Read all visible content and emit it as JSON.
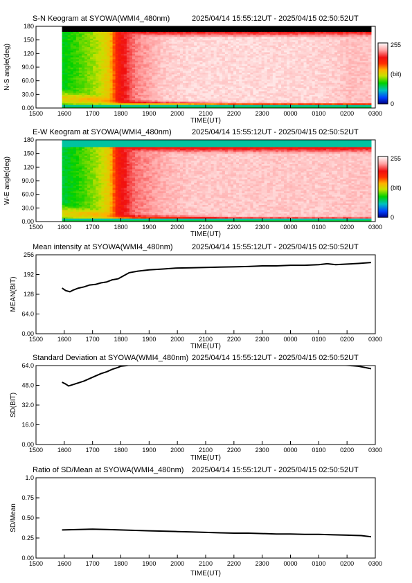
{
  "time_axis": {
    "label": "TIME(UT)",
    "ticks": [
      "1500",
      "1600",
      "1700",
      "1800",
      "1900",
      "2000",
      "2100",
      "2200",
      "2300",
      "0000",
      "0100",
      "0200",
      "0300"
    ]
  },
  "colorbar": {
    "max_label": "255",
    "min_label": "0",
    "unit_label": "(bit)"
  },
  "colormap_stops": [
    {
      "v": 0.0,
      "c": "#000080"
    },
    {
      "v": 0.1,
      "c": "#0040ff"
    },
    {
      "v": 0.22,
      "c": "#00c0c0"
    },
    {
      "v": 0.34,
      "c": "#00d000"
    },
    {
      "v": 0.46,
      "c": "#c8e000"
    },
    {
      "v": 0.56,
      "c": "#ffb000"
    },
    {
      "v": 0.66,
      "c": "#ff3000"
    },
    {
      "v": 0.76,
      "c": "#f01010"
    },
    {
      "v": 0.88,
      "c": "#ffa0a0"
    },
    {
      "v": 1.0,
      "c": "#ffffff"
    }
  ],
  "chart_data": [
    {
      "type": "heatmap",
      "title": "S-N Keogram at SYOWA(WMI4_480nm)",
      "time_range": "2025/04/14 15:55:12UT - 2025/04/15 02:50:52UT",
      "xlabel": "TIME(UT)",
      "ylabel": "N-S angle(deg)",
      "xlim": [
        15.0,
        27.0
      ],
      "ylim": [
        0,
        180
      ],
      "yticks": [
        "0.00",
        "30.0",
        "60.0",
        "90.0",
        "120",
        "150",
        "180"
      ],
      "data_start": 15.92,
      "data_end": 26.85,
      "band_top": 170,
      "band_bottom": 8,
      "edge_profile": [
        [
          15.92,
          0.32
        ],
        [
          16.5,
          0.38
        ],
        [
          17.2,
          0.45
        ],
        [
          17.6,
          0.52
        ],
        [
          17.9,
          0.72
        ],
        [
          18.5,
          0.85
        ],
        [
          19.5,
          0.93
        ],
        [
          20.5,
          0.95
        ],
        [
          22.0,
          0.95
        ],
        [
          24.0,
          0.95
        ],
        [
          25.5,
          0.94
        ],
        [
          26.1,
          0.92
        ],
        [
          26.85,
          0.92
        ]
      ],
      "edge_width_deg": [
        [
          15.92,
          35
        ],
        [
          18.0,
          12
        ],
        [
          22.0,
          6
        ],
        [
          26.85,
          5
        ]
      ]
    },
    {
      "type": "heatmap",
      "title": "E-W Keogram at SYOWA(WMI4_480nm)",
      "time_range": "2025/04/14 15:55:12UT - 2025/04/15 02:50:52UT",
      "xlabel": "TIME(UT)",
      "ylabel": "W-E angle(deg)",
      "xlim": [
        15.0,
        27.0
      ],
      "ylim": [
        0,
        180
      ],
      "yticks": [
        "0.00",
        "30.0",
        "60.0",
        "90.0",
        "120",
        "150",
        "180"
      ],
      "data_start": 15.92,
      "data_end": 26.85,
      "band_top": 164,
      "band_bottom": 6,
      "edge_profile": [
        [
          15.92,
          0.3
        ],
        [
          16.5,
          0.36
        ],
        [
          17.2,
          0.44
        ],
        [
          17.6,
          0.52
        ],
        [
          17.9,
          0.72
        ],
        [
          18.5,
          0.84
        ],
        [
          19.5,
          0.9
        ],
        [
          20.5,
          0.93
        ],
        [
          22.0,
          0.93
        ],
        [
          24.0,
          0.93
        ],
        [
          25.5,
          0.93
        ],
        [
          26.85,
          0.92
        ]
      ],
      "edge_width_deg": [
        [
          15.92,
          35
        ],
        [
          18.0,
          12
        ],
        [
          22.0,
          7
        ],
        [
          26.85,
          6
        ]
      ]
    },
    {
      "type": "line",
      "title": "Mean intensity at SYOWA(WMI4_480nm)",
      "time_range": "2025/04/14 15:55:12UT - 2025/04/15 02:50:52UT",
      "xlabel": "TIME(UT)",
      "ylabel": "MEAN(BIT)",
      "xlim": [
        15.0,
        27.0
      ],
      "ylim": [
        0,
        256
      ],
      "yticks": [
        "0.00",
        "64.0",
        "128",
        "192",
        "256"
      ],
      "x": [
        15.92,
        16.05,
        16.2,
        16.3,
        16.5,
        16.7,
        16.9,
        17.1,
        17.3,
        17.5,
        17.7,
        17.9,
        18.1,
        18.3,
        18.6,
        19.0,
        19.5,
        20.0,
        20.5,
        21.0,
        21.5,
        22.0,
        22.5,
        23.0,
        23.5,
        24.0,
        24.5,
        25.0,
        25.3,
        25.6,
        26.0,
        26.4,
        26.85
      ],
      "values": [
        148,
        140,
        136,
        141,
        148,
        152,
        158,
        160,
        165,
        168,
        175,
        178,
        188,
        198,
        203,
        207,
        210,
        213,
        214,
        215,
        216,
        217,
        218,
        220,
        220,
        222,
        222,
        224,
        227,
        224,
        226,
        228,
        231
      ]
    },
    {
      "type": "line",
      "title": "Standard Deviation at SYOWA(WMI4_480nm)",
      "time_range": "2025/04/14 15:55:12UT - 2025/04/15 02:50:52UT",
      "xlabel": "TIME(UT)",
      "ylabel": "SD(BIT)",
      "xlim": [
        15.0,
        27.0
      ],
      "ylim": [
        0,
        64
      ],
      "yticks": [
        "0.00",
        "16.0",
        "32.0",
        "48.0",
        "64.0"
      ],
      "x": [
        15.92,
        16.05,
        16.15,
        16.3,
        16.5,
        16.7,
        16.9,
        17.1,
        17.3,
        17.5,
        17.7,
        17.9,
        18.0,
        18.2,
        18.4,
        18.6,
        19.0,
        19.5,
        20.0,
        21.0,
        22.0,
        23.0,
        24.0,
        25.0,
        25.5,
        26.0,
        26.4,
        26.85
      ],
      "values": [
        50.5,
        49.0,
        47.5,
        48.5,
        50.0,
        51.5,
        53.5,
        55.5,
        57.5,
        59.0,
        61.0,
        62.5,
        63.5,
        64.0,
        64.8,
        65.2,
        65.8,
        66.0,
        66.2,
        66.4,
        66.3,
        66.1,
        66.0,
        65.5,
        64.8,
        64.2,
        63.5,
        61.5
      ]
    },
    {
      "type": "line",
      "title": "Ratio of SD/Mean at SYOWA(WMI4_480nm)",
      "time_range": "2025/04/14 15:55:12UT - 2025/04/15 02:50:52UT",
      "xlabel": "TIME(UT)",
      "ylabel": "SD/Mean",
      "xlim": [
        15.0,
        27.0
      ],
      "ylim": [
        0,
        1
      ],
      "yticks": [
        "0.00",
        "0.25",
        "0.50",
        "0.75",
        "1.0"
      ],
      "x": [
        15.92,
        16.5,
        17.0,
        17.5,
        18.0,
        18.5,
        19.0,
        19.5,
        20.0,
        20.5,
        21.0,
        21.5,
        22.0,
        22.5,
        23.0,
        23.5,
        24.0,
        24.5,
        25.0,
        25.5,
        26.0,
        26.5,
        26.85
      ],
      "values": [
        0.35,
        0.355,
        0.36,
        0.355,
        0.35,
        0.345,
        0.34,
        0.335,
        0.33,
        0.325,
        0.32,
        0.315,
        0.31,
        0.31,
        0.305,
        0.3,
        0.3,
        0.295,
        0.295,
        0.29,
        0.285,
        0.28,
        0.265
      ]
    }
  ]
}
